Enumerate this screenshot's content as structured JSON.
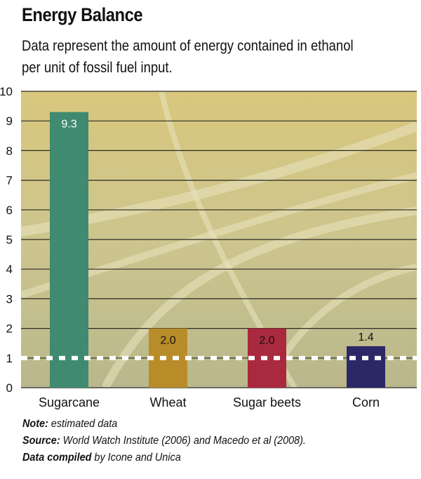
{
  "title": "Energy Balance",
  "subtitle": {
    "line1": "Data represent the amount of energy contained in ethanol",
    "line2": "per unit of fossil fuel input."
  },
  "chart_data": {
    "type": "bar",
    "categories": [
      "Sugarcane",
      "Wheat",
      "Sugar beets",
      "Corn"
    ],
    "values": [
      9.3,
      2.0,
      2.0,
      1.4
    ],
    "value_labels": [
      "9.3",
      "2.0",
      "2.0",
      "1.4"
    ],
    "colors": [
      "#3f8a70",
      "#b98c2a",
      "#a9293e",
      "#2c2866"
    ],
    "ylim": [
      0,
      10
    ],
    "yticks": [
      "0",
      "1",
      "2",
      "3",
      "4",
      "5",
      "6",
      "7",
      "8",
      "9",
      "10"
    ],
    "grid": true,
    "reference_line": {
      "y": 1,
      "style": "dashed",
      "color": "#ffffff"
    }
  },
  "notes": {
    "note_label": "Note:",
    "note_text": "estimated data",
    "source_label": "Source:",
    "source_text": "World Watch Institute (2006) and Macedo et al (2008).",
    "compiled_label": "Data compiled",
    "compiled_text": "by Icone and Unica"
  }
}
